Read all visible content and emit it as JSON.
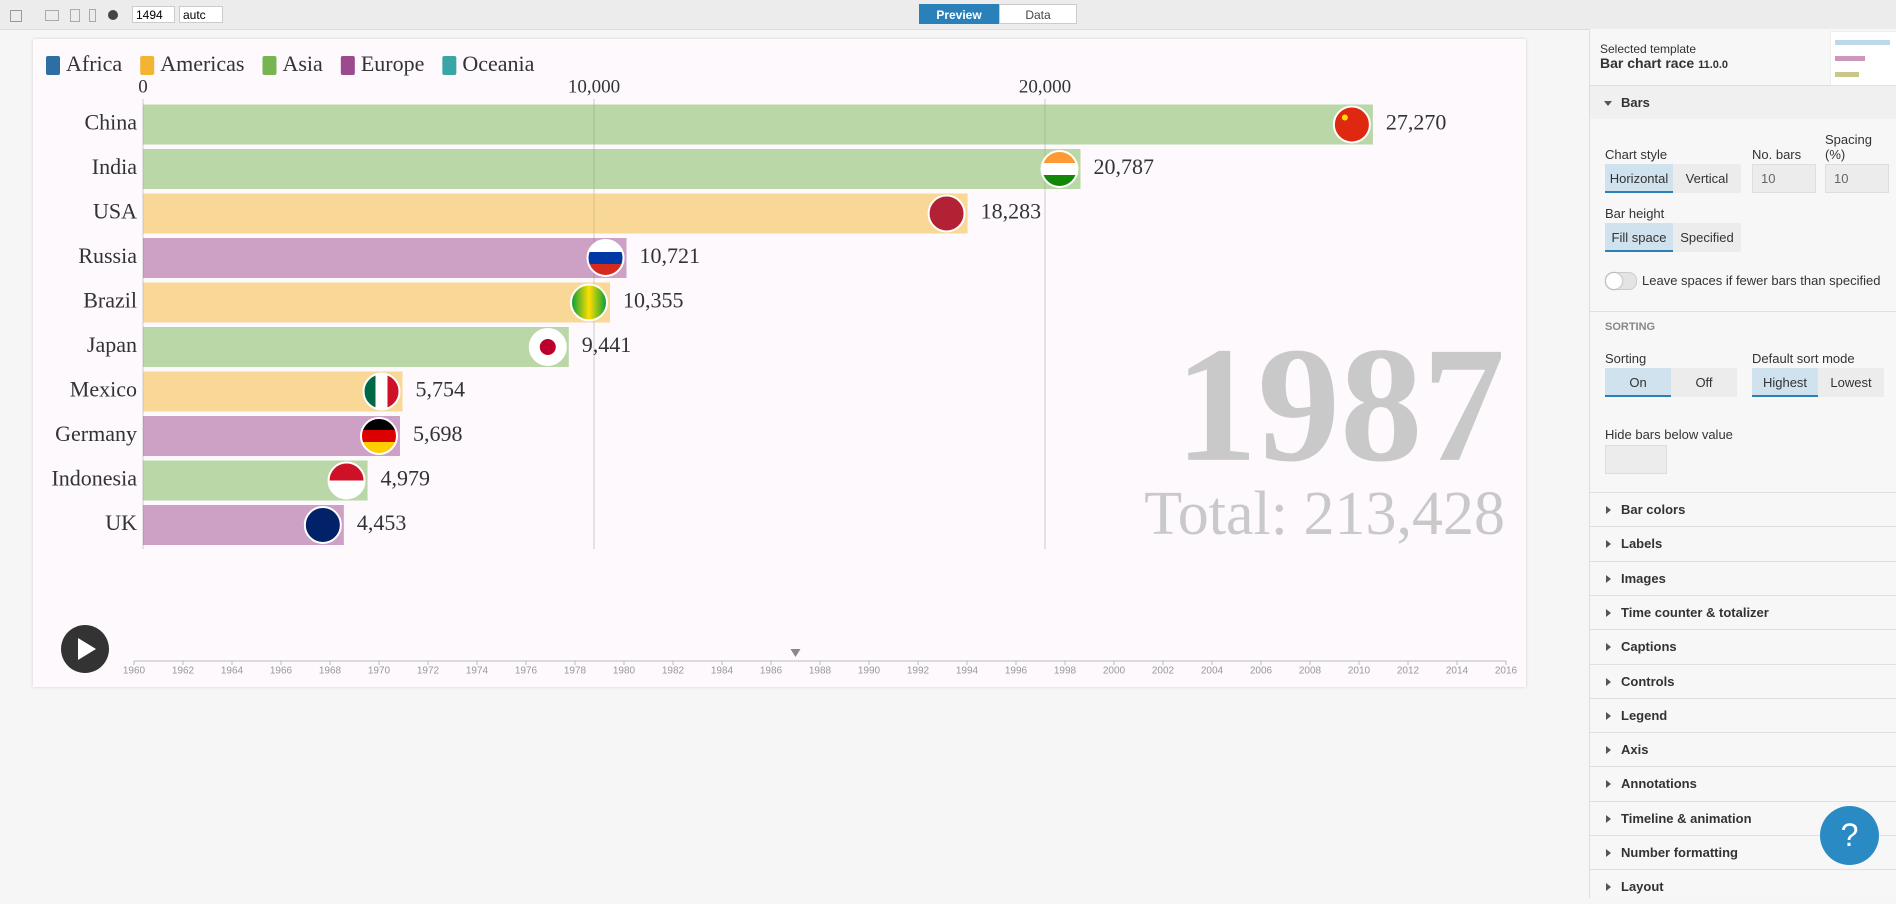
{
  "toolbar": {
    "width": 1494,
    "height": "autc",
    "tabs": [
      "Preview",
      "Data"
    ]
  },
  "chart_data": {
    "type": "bar",
    "orientation": "horizontal",
    "groups": [
      {
        "name": "Africa",
        "color": "#2d6ea3"
      },
      {
        "name": "Americas",
        "color": "#f3b531"
      },
      {
        "name": "Asia",
        "color": "#76b552"
      },
      {
        "name": "Europe",
        "color": "#9c4a8d"
      },
      {
        "name": "Oceania",
        "color": "#3aa5a5"
      }
    ],
    "categories": [
      "China",
      "India",
      "USA",
      "Russia",
      "Brazil",
      "Japan",
      "Mexico",
      "Germany",
      "Indonesia",
      "UK"
    ],
    "bar_group": [
      "Asia",
      "Asia",
      "Americas",
      "Europe",
      "Americas",
      "Asia",
      "Americas",
      "Europe",
      "Asia",
      "Europe"
    ],
    "values": [
      27270,
      20787,
      18283,
      10721,
      10355,
      9441,
      5754,
      5698,
      4979,
      4453
    ],
    "value_labels": [
      "27,270",
      "20,787",
      "18,283",
      "10,721",
      "10,355",
      "9,441",
      "5,754",
      "5,698",
      "4,979",
      "4,453"
    ],
    "xlim": [
      0,
      30000
    ],
    "xticks": [
      0,
      {
        "value": 10000,
        "label": "10,000"
      },
      {
        "value": 20000,
        "label": "20,000"
      }
    ],
    "grid": true,
    "counter": 1987,
    "total_label": "Total: 213,428"
  },
  "timeline": {
    "ticks": [
      1960,
      1962,
      1964,
      1966,
      1968,
      1970,
      1972,
      1974,
      1976,
      1978,
      1980,
      1982,
      1984,
      1986,
      1988,
      1990,
      1992,
      1994,
      1996,
      1998,
      2000,
      2002,
      2004,
      2006,
      2008,
      2010,
      2012,
      2014,
      2016
    ],
    "current": 1987
  },
  "panel": {
    "template_label": "Selected template",
    "template_name": "Bar chart race",
    "template_version": "11.0.0",
    "open_section": "Bars",
    "chart_style": {
      "label": "Chart style",
      "options": [
        "Horizontal",
        "Vertical"
      ]
    },
    "no_bars": {
      "label": "No. bars",
      "value": 10
    },
    "spacing": {
      "label": "Spacing (%)",
      "value": 10
    },
    "bar_height": {
      "label": "Bar height",
      "options": [
        "Fill space",
        "Specified"
      ]
    },
    "leave_spaces": "Leave spaces if fewer bars than specified",
    "sorting_heading": "SORTING",
    "sorting": {
      "label": "Sorting",
      "options": [
        "On",
        "Off"
      ]
    },
    "sort_mode": {
      "label": "Default sort mode",
      "options": [
        "Highest",
        "Lowest"
      ]
    },
    "hide_below": "Hide bars below value",
    "sections": [
      "Bar colors",
      "Labels",
      "Images",
      "Time counter & totalizer",
      "Captions",
      "Controls",
      "Legend",
      "Axis",
      "Annotations",
      "Timeline & animation",
      "Number formatting",
      "Layout"
    ]
  },
  "help": "?"
}
